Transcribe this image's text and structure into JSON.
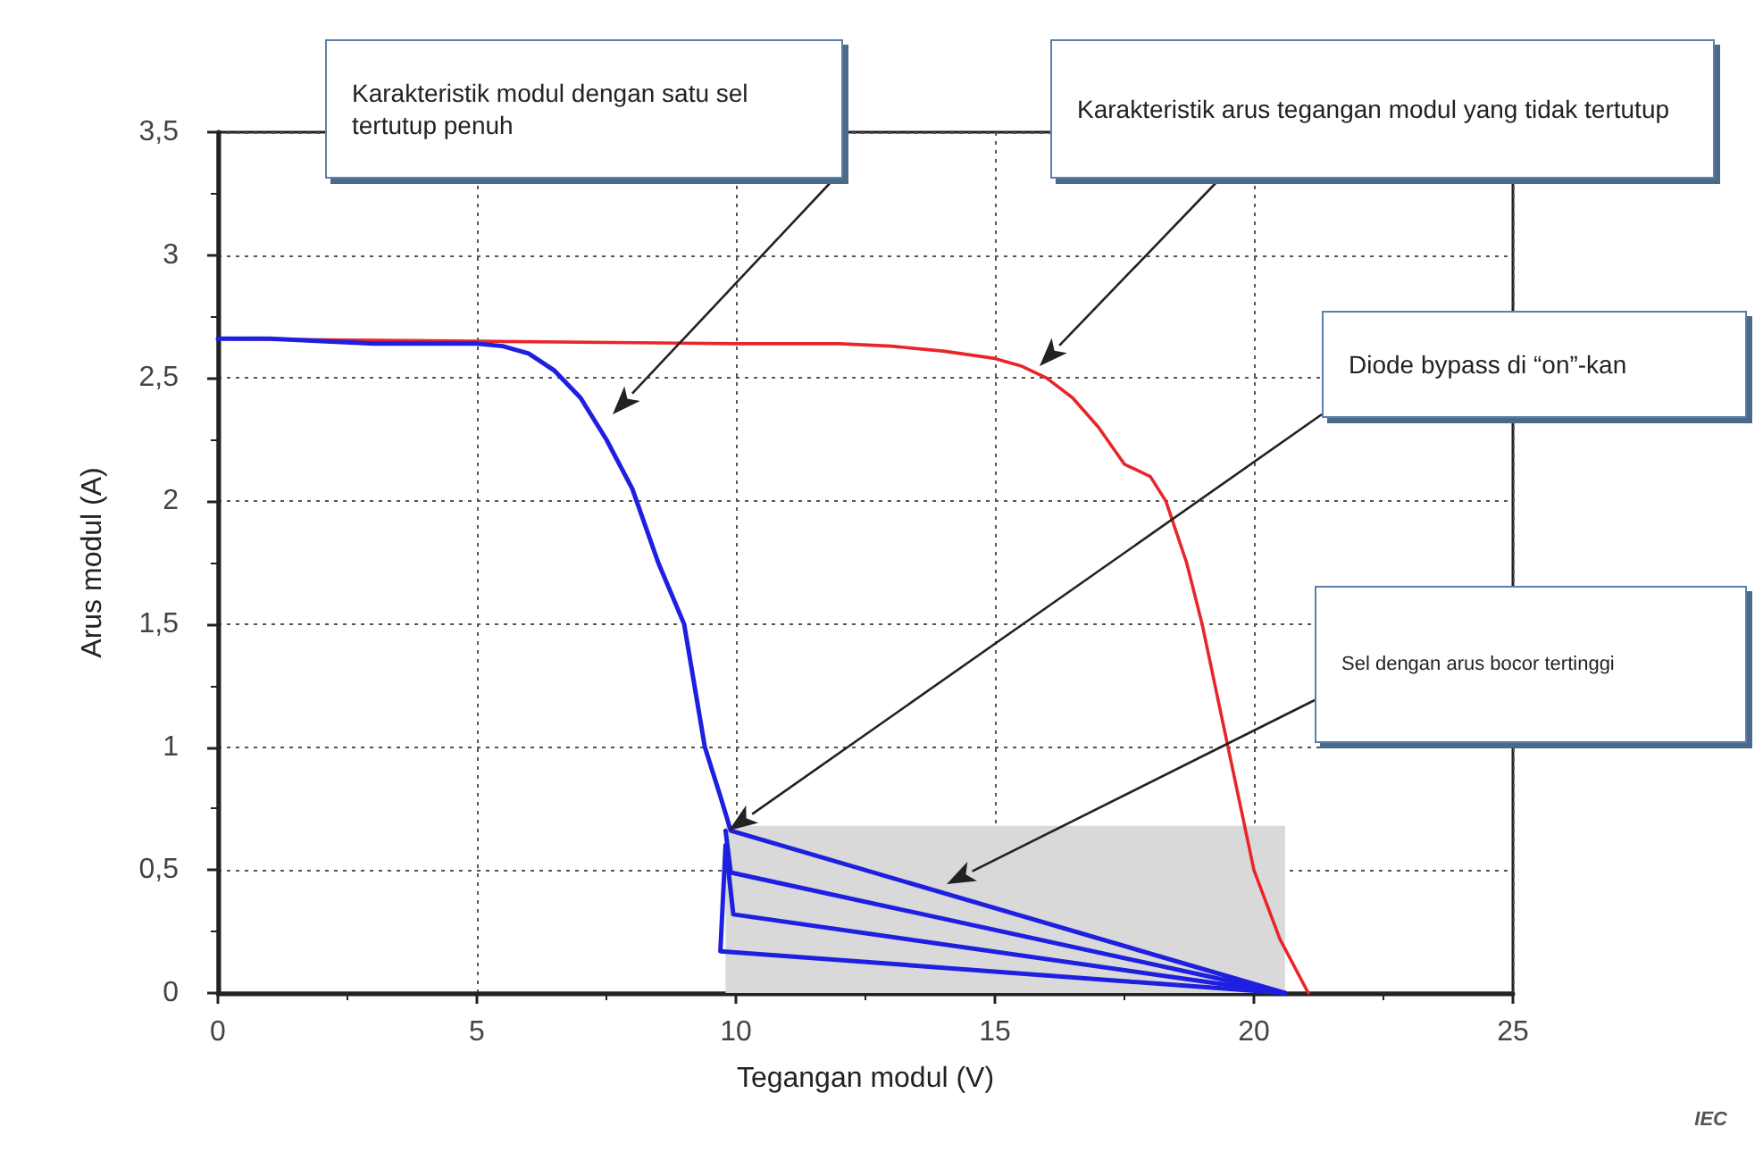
{
  "chart_data": {
    "type": "line",
    "xlabel": "Tegangan modul (V)",
    "ylabel": "Arus modul (A)",
    "xlim": [
      0,
      25
    ],
    "xticks": [
      0,
      5,
      10,
      15,
      20,
      25
    ],
    "ylim": [
      0,
      3.5
    ],
    "yticks": [
      0,
      {
        "value": 0.5,
        "label": "0,5"
      },
      1,
      {
        "value": 1.5,
        "label": "1,5"
      },
      2,
      {
        "value": 2.5,
        "label": "2,5"
      },
      3,
      {
        "value": 3.5,
        "label": "3,5"
      }
    ],
    "grid": true,
    "marker": "none",
    "line_style": "solid",
    "series": [
      {
        "type": "area",
        "color": "#d9d9d9",
        "x": [
          9.8,
          20.6
        ],
        "values": [
          0.68,
          0.68
        ]
      },
      {
        "color": "#e8262a",
        "x": [
          0,
          5,
          10,
          12,
          13,
          14,
          15,
          15.5,
          16,
          16.5,
          17,
          17.5,
          18,
          18.3,
          18.7,
          19,
          19.5,
          20,
          20.5,
          21.05
        ],
        "values": [
          2.66,
          2.65,
          2.64,
          2.64,
          2.63,
          2.61,
          2.58,
          2.55,
          2.5,
          2.42,
          2.3,
          2.15,
          2.1,
          2.0,
          1.75,
          1.5,
          1.0,
          0.5,
          0.22,
          0
        ]
      },
      {
        "color": "#1f1fe0",
        "x": [
          0,
          1,
          2,
          3,
          4,
          5,
          5.5,
          6,
          6.5,
          7,
          7.5,
          8,
          8.5,
          9,
          9.4,
          9.7,
          9.9,
          20.6
        ],
        "values": [
          2.66,
          2.66,
          2.65,
          2.64,
          2.64,
          2.64,
          2.63,
          2.6,
          2.53,
          2.42,
          2.25,
          2.05,
          1.75,
          1.5,
          1.0,
          0.8,
          0.66,
          0
        ]
      },
      {
        "color": "#1f1fe0",
        "x": [
          9.8,
          9.9,
          20.6
        ],
        "values": [
          0.66,
          0.49,
          0
        ]
      },
      {
        "color": "#1f1fe0",
        "x": [
          9.8,
          9.95,
          20.6
        ],
        "values": [
          0.6,
          0.32,
          0
        ]
      },
      {
        "color": "#1f1fe0",
        "x": [
          9.8,
          9.7,
          20.6
        ],
        "values": [
          0.6,
          0.17,
          0
        ]
      }
    ],
    "annotations": [
      "Karakteristik modul dengan satu sel tertutup penuh",
      "Karakteristik arus tegangan modul yang tidak tertutup",
      "Diode bypass di “on”-kan",
      "Sel dengan arus bocor tertinggi",
      "IEC"
    ]
  }
}
